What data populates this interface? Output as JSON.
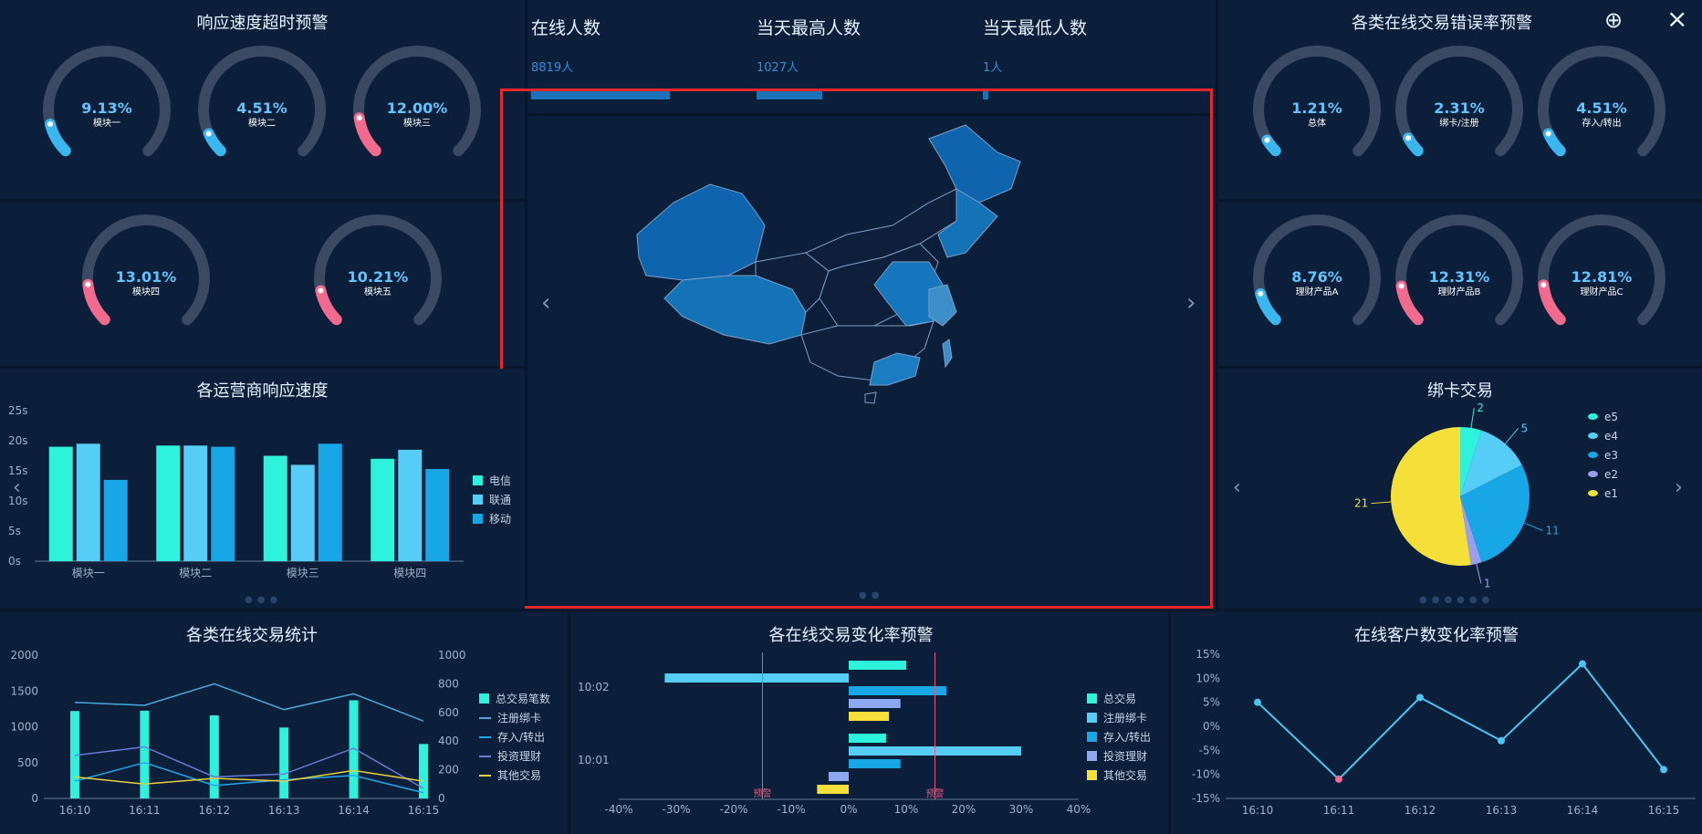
{
  "top_left": {
    "title": "响应速度超时预警",
    "gauges": [
      {
        "value": 9.13,
        "value_text": "9.13%",
        "label": "模块一"
      },
      {
        "value": 4.51,
        "value_text": "4.51%",
        "label": "模块二"
      },
      {
        "value": 12.0,
        "value_text": "12.00%",
        "label": "模块三"
      },
      {
        "value": 13.01,
        "value_text": "13.01%",
        "label": "模块四"
      },
      {
        "value": 10.21,
        "value_text": "10.21%",
        "label": "模块五"
      }
    ]
  },
  "top_right": {
    "title": "各类在线交易错误率预警",
    "gauges": [
      {
        "value": 1.21,
        "value_text": "1.21%",
        "label": "总体"
      },
      {
        "value": 2.31,
        "value_text": "2.31%",
        "label": "绑卡/注册"
      },
      {
        "value": 4.51,
        "value_text": "4.51%",
        "label": "存入/转出"
      },
      {
        "value": 8.76,
        "value_text": "8.76%",
        "label": "理财产品A"
      },
      {
        "value": 12.31,
        "value_text": "12.31%",
        "label": "理财产品B"
      },
      {
        "value": 12.81,
        "value_text": "12.81%",
        "label": "理财产品C"
      }
    ]
  },
  "gauge_colors": {
    "low": "#3ab6f0",
    "high": "#f26b8f",
    "track": "#394a62",
    "value_text": "#62c4ff"
  },
  "stats": [
    {
      "label": "在线人数",
      "value_text": "8819人",
      "bar_fraction": 0.78
    },
    {
      "label": "当天最高人数",
      "value_text": "1027人",
      "bar_fraction": 0.37
    },
    {
      "label": "当天最低人数",
      "value_text": "1人",
      "bar_fraction": 0.03
    }
  ],
  "window_icons": {
    "close": "×",
    "zoom": "⊕",
    "highlight": "red-selection-box"
  },
  "map": {
    "name": "china-map",
    "prev_arrow": "‹",
    "next_arrow": "›"
  },
  "operator_chart": {
    "title": "各运营商响应速度",
    "chart_data": {
      "type": "bar",
      "categories": [
        "模块一",
        "模块二",
        "模块三",
        "模块四"
      ],
      "series": [
        {
          "name": "电信",
          "values": [
            19,
            19.2,
            17.5,
            17
          ],
          "color": "#2ff2dd"
        },
        {
          "name": "联通",
          "values": [
            19.5,
            19.2,
            16,
            18.5
          ],
          "color": "#55cdf6"
        },
        {
          "name": "移动",
          "values": [
            13.5,
            19,
            19.5,
            15.3
          ],
          "color": "#17a6e6"
        }
      ],
      "yticks": [
        "0s",
        "5s",
        "10s",
        "15s",
        "20s",
        "25s"
      ],
      "ylim": [
        0,
        25
      ]
    }
  },
  "bind_card": {
    "title": "绑卡交易",
    "chart_data": {
      "type": "pie",
      "slices": [
        {
          "name": "e5",
          "value": 2,
          "color": "#2ff2dd"
        },
        {
          "name": "e4",
          "value": 5,
          "color": "#55cdf6"
        },
        {
          "name": "e3",
          "value": 11,
          "color": "#17a6e6"
        },
        {
          "name": "e2",
          "value": 1,
          "color": "#9c9ff0"
        },
        {
          "name": "e1",
          "value": 21,
          "color": "#f5e03a"
        }
      ]
    }
  },
  "trade_stats": {
    "title": "各类在线交易统计",
    "chart_data": {
      "type": "line",
      "categories": [
        "16:10",
        "16:11",
        "16:12",
        "16:13",
        "16:14",
        "16:15"
      ],
      "yticks_left": [
        "0",
        "500",
        "1000",
        "1500",
        "2000"
      ],
      "yticks_right": [
        "0",
        "200",
        "400",
        "600",
        "800",
        "1000"
      ],
      "ylim_left": [
        0,
        2000
      ],
      "ylim_right": [
        0,
        1000
      ],
      "bars": {
        "name": "总交易笔数",
        "values": [
          1220,
          1225,
          1160,
          990,
          1370,
          760
        ],
        "color": "#2ff2dd"
      },
      "lines": [
        {
          "name": "注册绑卡",
          "values": [
            670,
            650,
            800,
            620,
            730,
            540
          ],
          "color": "#4aa8de"
        },
        {
          "name": "存入/转出",
          "values": [
            120,
            250,
            90,
            130,
            160,
            40
          ],
          "color": "#1fa9ea"
        },
        {
          "name": "投资理财",
          "values": [
            300,
            360,
            150,
            170,
            350,
            70
          ],
          "color": "#6b7bd8"
        },
        {
          "name": "其他交易",
          "values": [
            150,
            100,
            140,
            120,
            195,
            120
          ],
          "color": "#e9d23a"
        }
      ]
    }
  },
  "change_rate": {
    "title": "各在线交易变化率预警",
    "chart_data": {
      "type": "bar",
      "orientation": "horizontal",
      "groups": [
        "10:02",
        "10:01"
      ],
      "xticks": [
        "-40%",
        "-30%",
        "-20%",
        "-10%",
        "0%",
        "10%",
        "20%",
        "30%",
        "40%"
      ],
      "xlim": [
        -40,
        40
      ],
      "series": [
        {
          "name": "总交易",
          "values": [
            10,
            6.5
          ],
          "color": "#2ff2dd"
        },
        {
          "name": "注册绑卡",
          "values": [
            -32,
            30
          ],
          "color": "#55cdf6"
        },
        {
          "name": "存入/转出",
          "values": [
            17,
            9
          ],
          "color": "#17a6e6"
        },
        {
          "name": "投资理财",
          "values": [
            9,
            -3.5
          ],
          "color": "#8ea8ef"
        },
        {
          "name": "其他交易",
          "values": [
            7,
            -5.5
          ],
          "color": "#f5e03a"
        }
      ],
      "warning_lines": [
        {
          "label": "预警",
          "value": -15
        },
        {
          "label": "预警",
          "value": 15
        }
      ]
    }
  },
  "customer_rate": {
    "title": "在线客户数变化率预警",
    "chart_data": {
      "type": "line",
      "categories": [
        "16:10",
        "16:11",
        "16:12",
        "16:13",
        "16:14",
        "16:15"
      ],
      "values": [
        5,
        -11,
        6,
        -3,
        13,
        -9
      ],
      "yticks": [
        "-15%",
        "-10%",
        "-5%",
        "0%",
        "5%",
        "10%",
        "15%"
      ],
      "ylim": [
        -15,
        15
      ],
      "line_color": "#4cc5f5",
      "min_point_color": "#f26b8f"
    }
  }
}
